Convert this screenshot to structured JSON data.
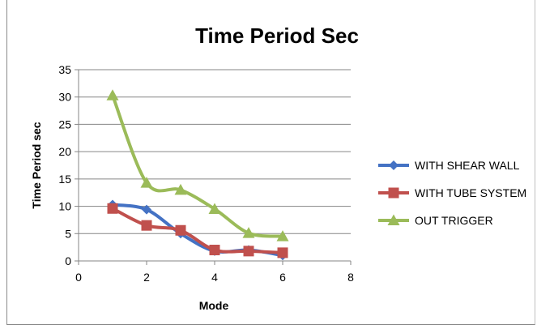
{
  "chart_data": {
    "type": "line",
    "title": "Time Period Sec",
    "xlabel": "Mode",
    "ylabel": "Time Period sec",
    "xlim": [
      0,
      8
    ],
    "ylim": [
      0,
      35
    ],
    "xticks": [
      0,
      2,
      4,
      6,
      8
    ],
    "yticks": [
      0,
      5,
      10,
      15,
      20,
      25,
      30,
      35
    ],
    "grid": "horizontal",
    "legend_position": "right",
    "series": [
      {
        "name": "WITH SHEAR WALL",
        "color": "#4472c4",
        "marker": "diamond",
        "x": [
          1,
          2,
          3,
          4,
          5,
          6
        ],
        "values": [
          10.3,
          9.4,
          5.0,
          1.8,
          2.0,
          1.0
        ]
      },
      {
        "name": "WITH TUBE SYSTEM",
        "color": "#c0504d",
        "marker": "square",
        "x": [
          1,
          2,
          3,
          4,
          5,
          6
        ],
        "values": [
          9.6,
          6.5,
          5.6,
          2.0,
          1.8,
          1.5
        ]
      },
      {
        "name": "OUT TRIGGER",
        "color": "#9bbb59",
        "marker": "triangle",
        "x": [
          1,
          2,
          3,
          4,
          5,
          6
        ],
        "values": [
          30.3,
          14.3,
          13.0,
          9.5,
          5.1,
          4.5
        ]
      }
    ]
  }
}
